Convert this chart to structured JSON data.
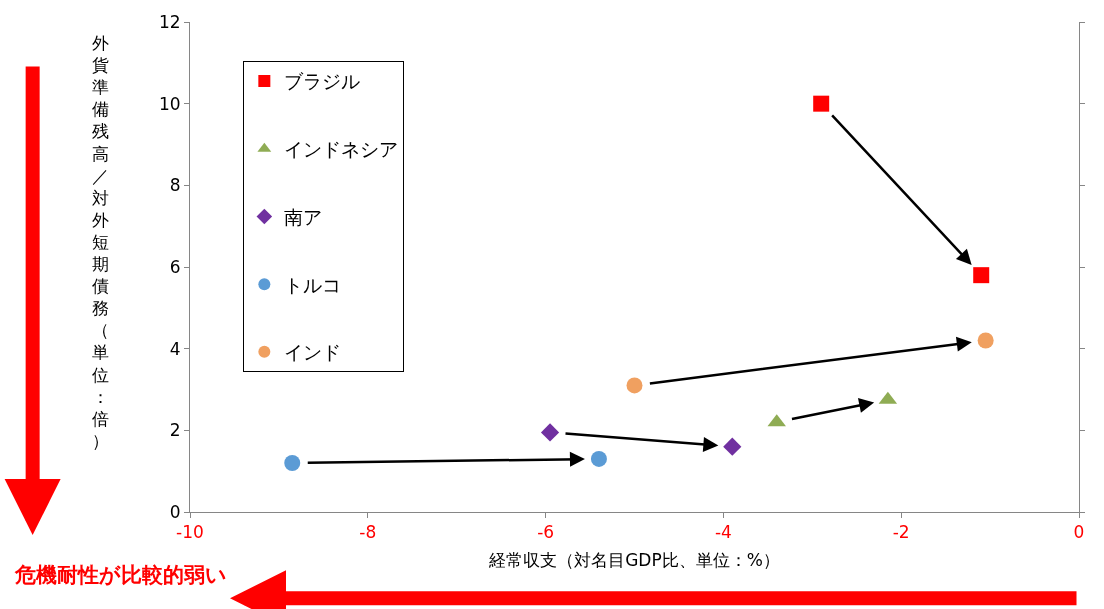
{
  "chart_data": {
    "type": "scatter",
    "xlabel": "経常収支（対名目GDP比、単位：%）",
    "ylabel": "外貨準備残高／対外短期債務（単位：倍）",
    "annotations": [
      "危機耐性が比較的弱い"
    ],
    "series": [
      {
        "name": "ブラジル",
        "color": "#ff0000",
        "marker": "square",
        "x": [
          -2.9,
          -1.1
        ],
        "values": [
          10.0,
          5.8
        ]
      },
      {
        "name": "インドネシア",
        "color": "#8fac54",
        "marker": "triangle",
        "x": [
          -3.4,
          -2.15
        ],
        "values": [
          2.2,
          2.75
        ]
      },
      {
        "name": "南ア",
        "color": "#7030a0",
        "marker": "diamond",
        "x": [
          -5.95,
          -3.9
        ],
        "values": [
          1.95,
          1.6
        ]
      },
      {
        "name": "トルコ",
        "color": "#5b9bd5",
        "marker": "circle",
        "x": [
          -8.85,
          -5.4
        ],
        "values": [
          1.2,
          1.3
        ]
      },
      {
        "name": "インド",
        "color": "#f0a060",
        "marker": "circle",
        "x": [
          -5.0,
          -1.05
        ],
        "values": [
          3.1,
          4.2
        ]
      }
    ],
    "xlim": [
      -10,
      0
    ],
    "xticks": [
      -10,
      -8,
      -6,
      -4,
      -2,
      0
    ],
    "ylim": [
      0,
      12
    ],
    "yticks": [
      0,
      2,
      4,
      6,
      8,
      10,
      12
    ],
    "legend": "top left"
  }
}
